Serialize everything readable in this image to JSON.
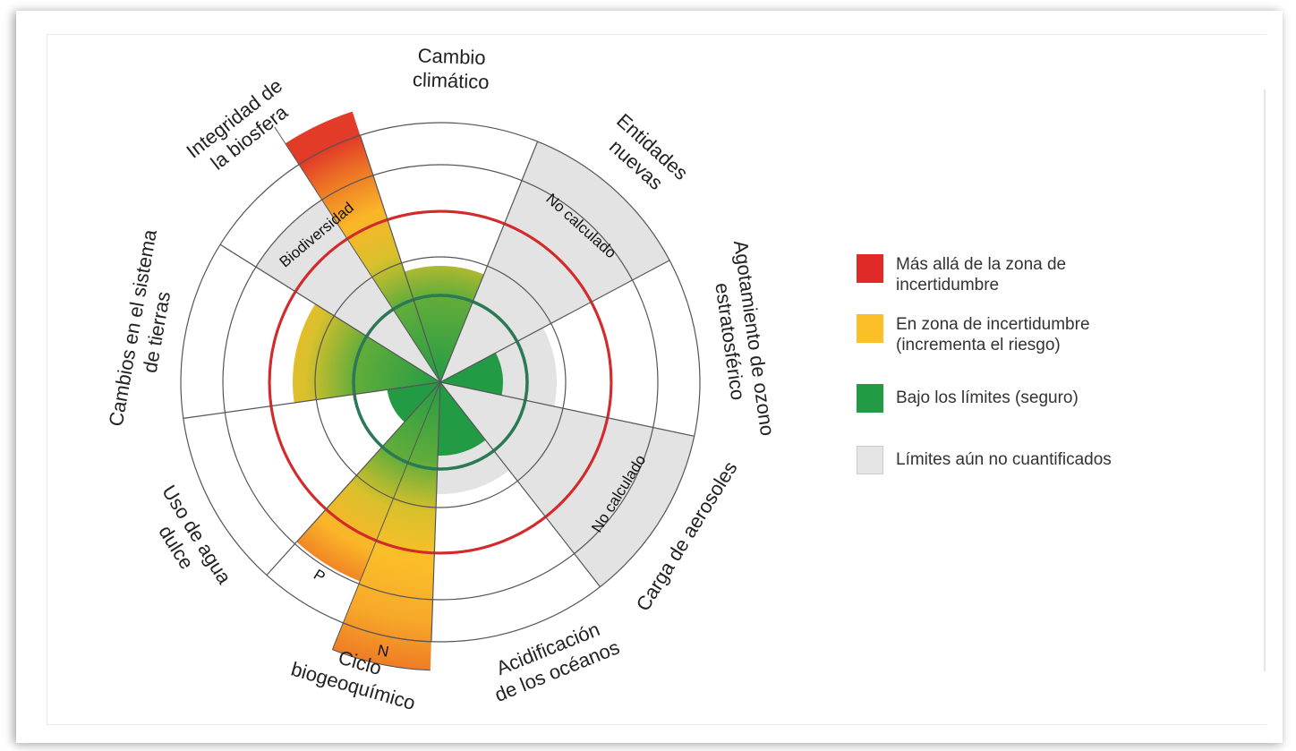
{
  "sectors": [
    {
      "id": "cambio-climatico",
      "label_lines": [
        "Cambio",
        "climático"
      ]
    },
    {
      "id": "entidades-nuevas",
      "label_lines": [
        "Entidades",
        "nuevas"
      ],
      "inner_label": "No calculado"
    },
    {
      "id": "agotamiento-ozono",
      "label_lines": [
        "Agotamiento de ozono",
        "estratosférico"
      ]
    },
    {
      "id": "carga-aerosoles",
      "label_lines": [
        "Carga de aerosoles"
      ],
      "inner_label": "No calculado"
    },
    {
      "id": "acidificacion-oceanos",
      "label_lines": [
        "Acidificación",
        "de los océanos"
      ]
    },
    {
      "id": "ciclo-biogeoquimico",
      "label_lines": [
        "Ciclo",
        "biogeoquímico"
      ],
      "sub_labels": [
        "P",
        "N"
      ]
    },
    {
      "id": "uso-agua-dulce",
      "label_lines": [
        "Uso de agua",
        "dulce"
      ]
    },
    {
      "id": "cambios-sistema-tierras",
      "label_lines": [
        "Cambios en el sistema",
        "de tierras"
      ]
    },
    {
      "id": "integridad-biosfera",
      "label_lines": [
        "Integridad de",
        "la biosfera"
      ],
      "inner_label": "Biodiversidad"
    }
  ],
  "legend": [
    {
      "color": "#e02a27",
      "text_lines": [
        "Más allá de la zona de",
        "incertidumbre"
      ]
    },
    {
      "color": "#fbbf28",
      "text_lines": [
        "En zona de incertidumbre",
        "(incrementa el riesgo)"
      ]
    },
    {
      "color": "#239b45",
      "text_lines": [
        "Bajo los límites (seguro)"
      ]
    },
    {
      "color": "#e5e5e5",
      "text_lines": [
        "Límites aún no cuantificados"
      ]
    }
  ],
  "colors": {
    "red": "#e02a27",
    "orange": "#ee7a25",
    "yellow": "#fbbf28",
    "green": "#239b45",
    "grey": "#e3e3e3",
    "safe_circle": "#2b7a55",
    "boundary_circle": "#d8282a",
    "ring_line": "#555555"
  }
}
